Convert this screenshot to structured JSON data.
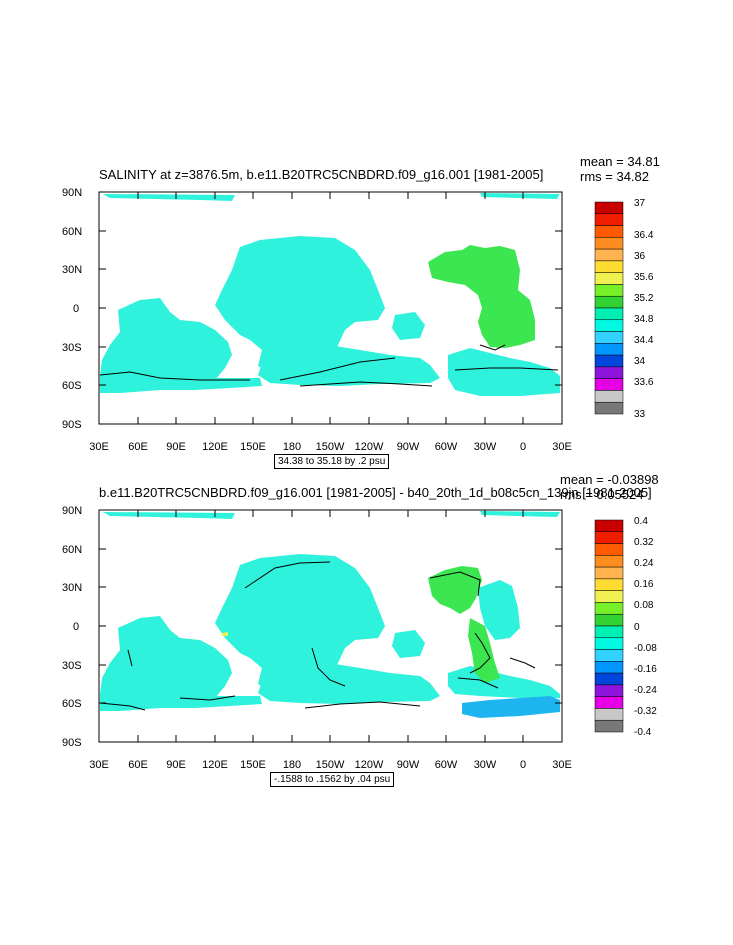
{
  "panels": [
    {
      "title": "SALINITY at z=3876.5m, b.e11.B20TRC5CNBDRD.f09_g16.001 [1981-2005]",
      "mean_label": "mean = 34.81",
      "rms_label": "rms = 34.82",
      "contour_info": "34.38 to 35.18 by .2 psu",
      "y_ticks": [
        "90N",
        "60N",
        "30N",
        "0",
        "30S",
        "60S",
        "90S"
      ],
      "x_ticks": [
        "30E",
        "60E",
        "90E",
        "120E",
        "150E",
        "180",
        "150W",
        "120W",
        "90W",
        "60W",
        "30W",
        "0",
        "30E"
      ],
      "colorbar_labels": [
        "37",
        "36.4",
        "36",
        "35.6",
        "35.2",
        "34.8",
        "34.4",
        "34",
        "33.6",
        "33"
      ],
      "colorbar_colors": [
        "#c80000",
        "#f01e00",
        "#ff5a00",
        "#ff8c1e",
        "#ffb450",
        "#ffdc32",
        "#f0f050",
        "#78f028",
        "#32d232",
        "#00f0b4",
        "#00fae1",
        "#32d2ff",
        "#0096ff",
        "#0046dc",
        "#8c14dc",
        "#e600e6",
        "#c8c8c8",
        "#787878"
      ]
    },
    {
      "title": "b.e11.B20TRC5CNBDRD.f09_g16.001 [1981-2005] - b40_20th_1d_b08c5cn_139jn [1981-2005]",
      "mean_label": "mean = -0.03898",
      "rms_label": "rms = 0.05524",
      "contour_info": "-.1588 to .1562 by .04 psu",
      "y_ticks": [
        "90N",
        "60N",
        "30N",
        "0",
        "30S",
        "60S",
        "90S"
      ],
      "x_ticks": [
        "30E",
        "60E",
        "90E",
        "120E",
        "150E",
        "180",
        "150W",
        "120W",
        "90W",
        "60W",
        "30W",
        "0",
        "30E"
      ],
      "colorbar_labels": [
        "0.4",
        "0.32",
        "0.24",
        "0.16",
        "0.08",
        "0",
        "-0.08",
        "-0.16",
        "-0.24",
        "-0.32",
        "-0.4"
      ],
      "colorbar_colors": [
        "#c80000",
        "#f01e00",
        "#ff5a00",
        "#ff8c1e",
        "#ffb450",
        "#ffdc32",
        "#f0f050",
        "#78f028",
        "#32d232",
        "#00f0b4",
        "#00fae1",
        "#32d2ff",
        "#0096ff",
        "#0046dc",
        "#8c14dc",
        "#e600e6",
        "#c8c8c8",
        "#787878"
      ]
    }
  ],
  "colors": {
    "ocean_main": "#2ef2dc",
    "ocean_green": "#3ce650",
    "ocean_blue": "#1eb4f0",
    "contour": "#000000"
  }
}
